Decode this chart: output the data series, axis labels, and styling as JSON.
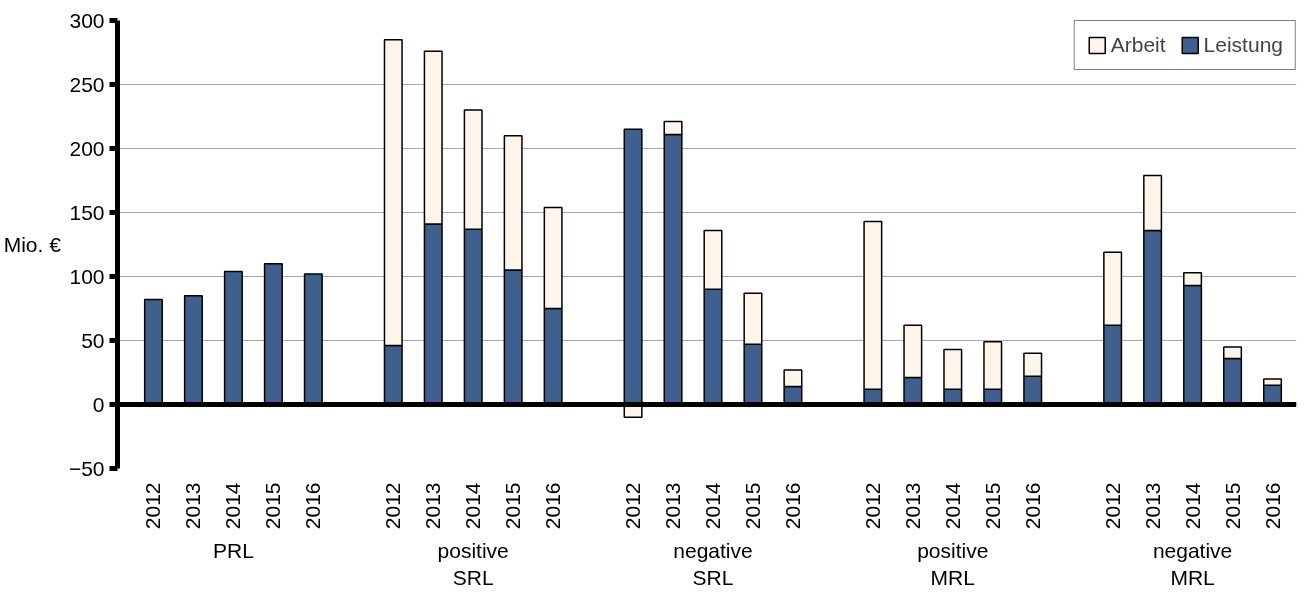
{
  "chart_data": {
    "type": "bar",
    "stacked": true,
    "ylabel": "Mio. €",
    "categories": [
      "2012",
      "2013",
      "2014",
      "2015",
      "2016",
      null,
      "2012",
      "2013",
      "2014",
      "2015",
      "2016",
      null,
      "2012",
      "2013",
      "2014",
      "2015",
      "2016",
      null,
      "2012",
      "2013",
      "2014",
      "2015",
      "2016",
      null,
      "2012",
      "2013",
      "2014",
      "2015",
      "2016"
    ],
    "annotations": [
      "PRL",
      "positive\nSRL",
      "negative\nSRL",
      "positive\nMRL",
      "negative\nMRL"
    ],
    "series": [
      {
        "name": "Leistung",
        "color": "#3f5f8c",
        "values": [
          82,
          85,
          104,
          110,
          102,
          null,
          46,
          141,
          137,
          105,
          75,
          null,
          215,
          211,
          90,
          47,
          14,
          null,
          12,
          21,
          12,
          12,
          22,
          null,
          62,
          136,
          93,
          36,
          15
        ]
      },
      {
        "name": "Arbeit",
        "color": "#fdf5ea",
        "values": [
          0,
          0,
          0,
          0,
          0,
          null,
          239,
          135,
          93,
          105,
          79,
          null,
          -10,
          10,
          46,
          40,
          13,
          null,
          131,
          41,
          31,
          37,
          18,
          null,
          57,
          43,
          10,
          9,
          5
        ]
      }
    ],
    "ylim": [
      -50,
      300
    ],
    "yticks": [
      -50,
      0,
      50,
      100,
      150,
      200,
      250,
      300
    ],
    "grid": "y",
    "legend": "top right"
  }
}
